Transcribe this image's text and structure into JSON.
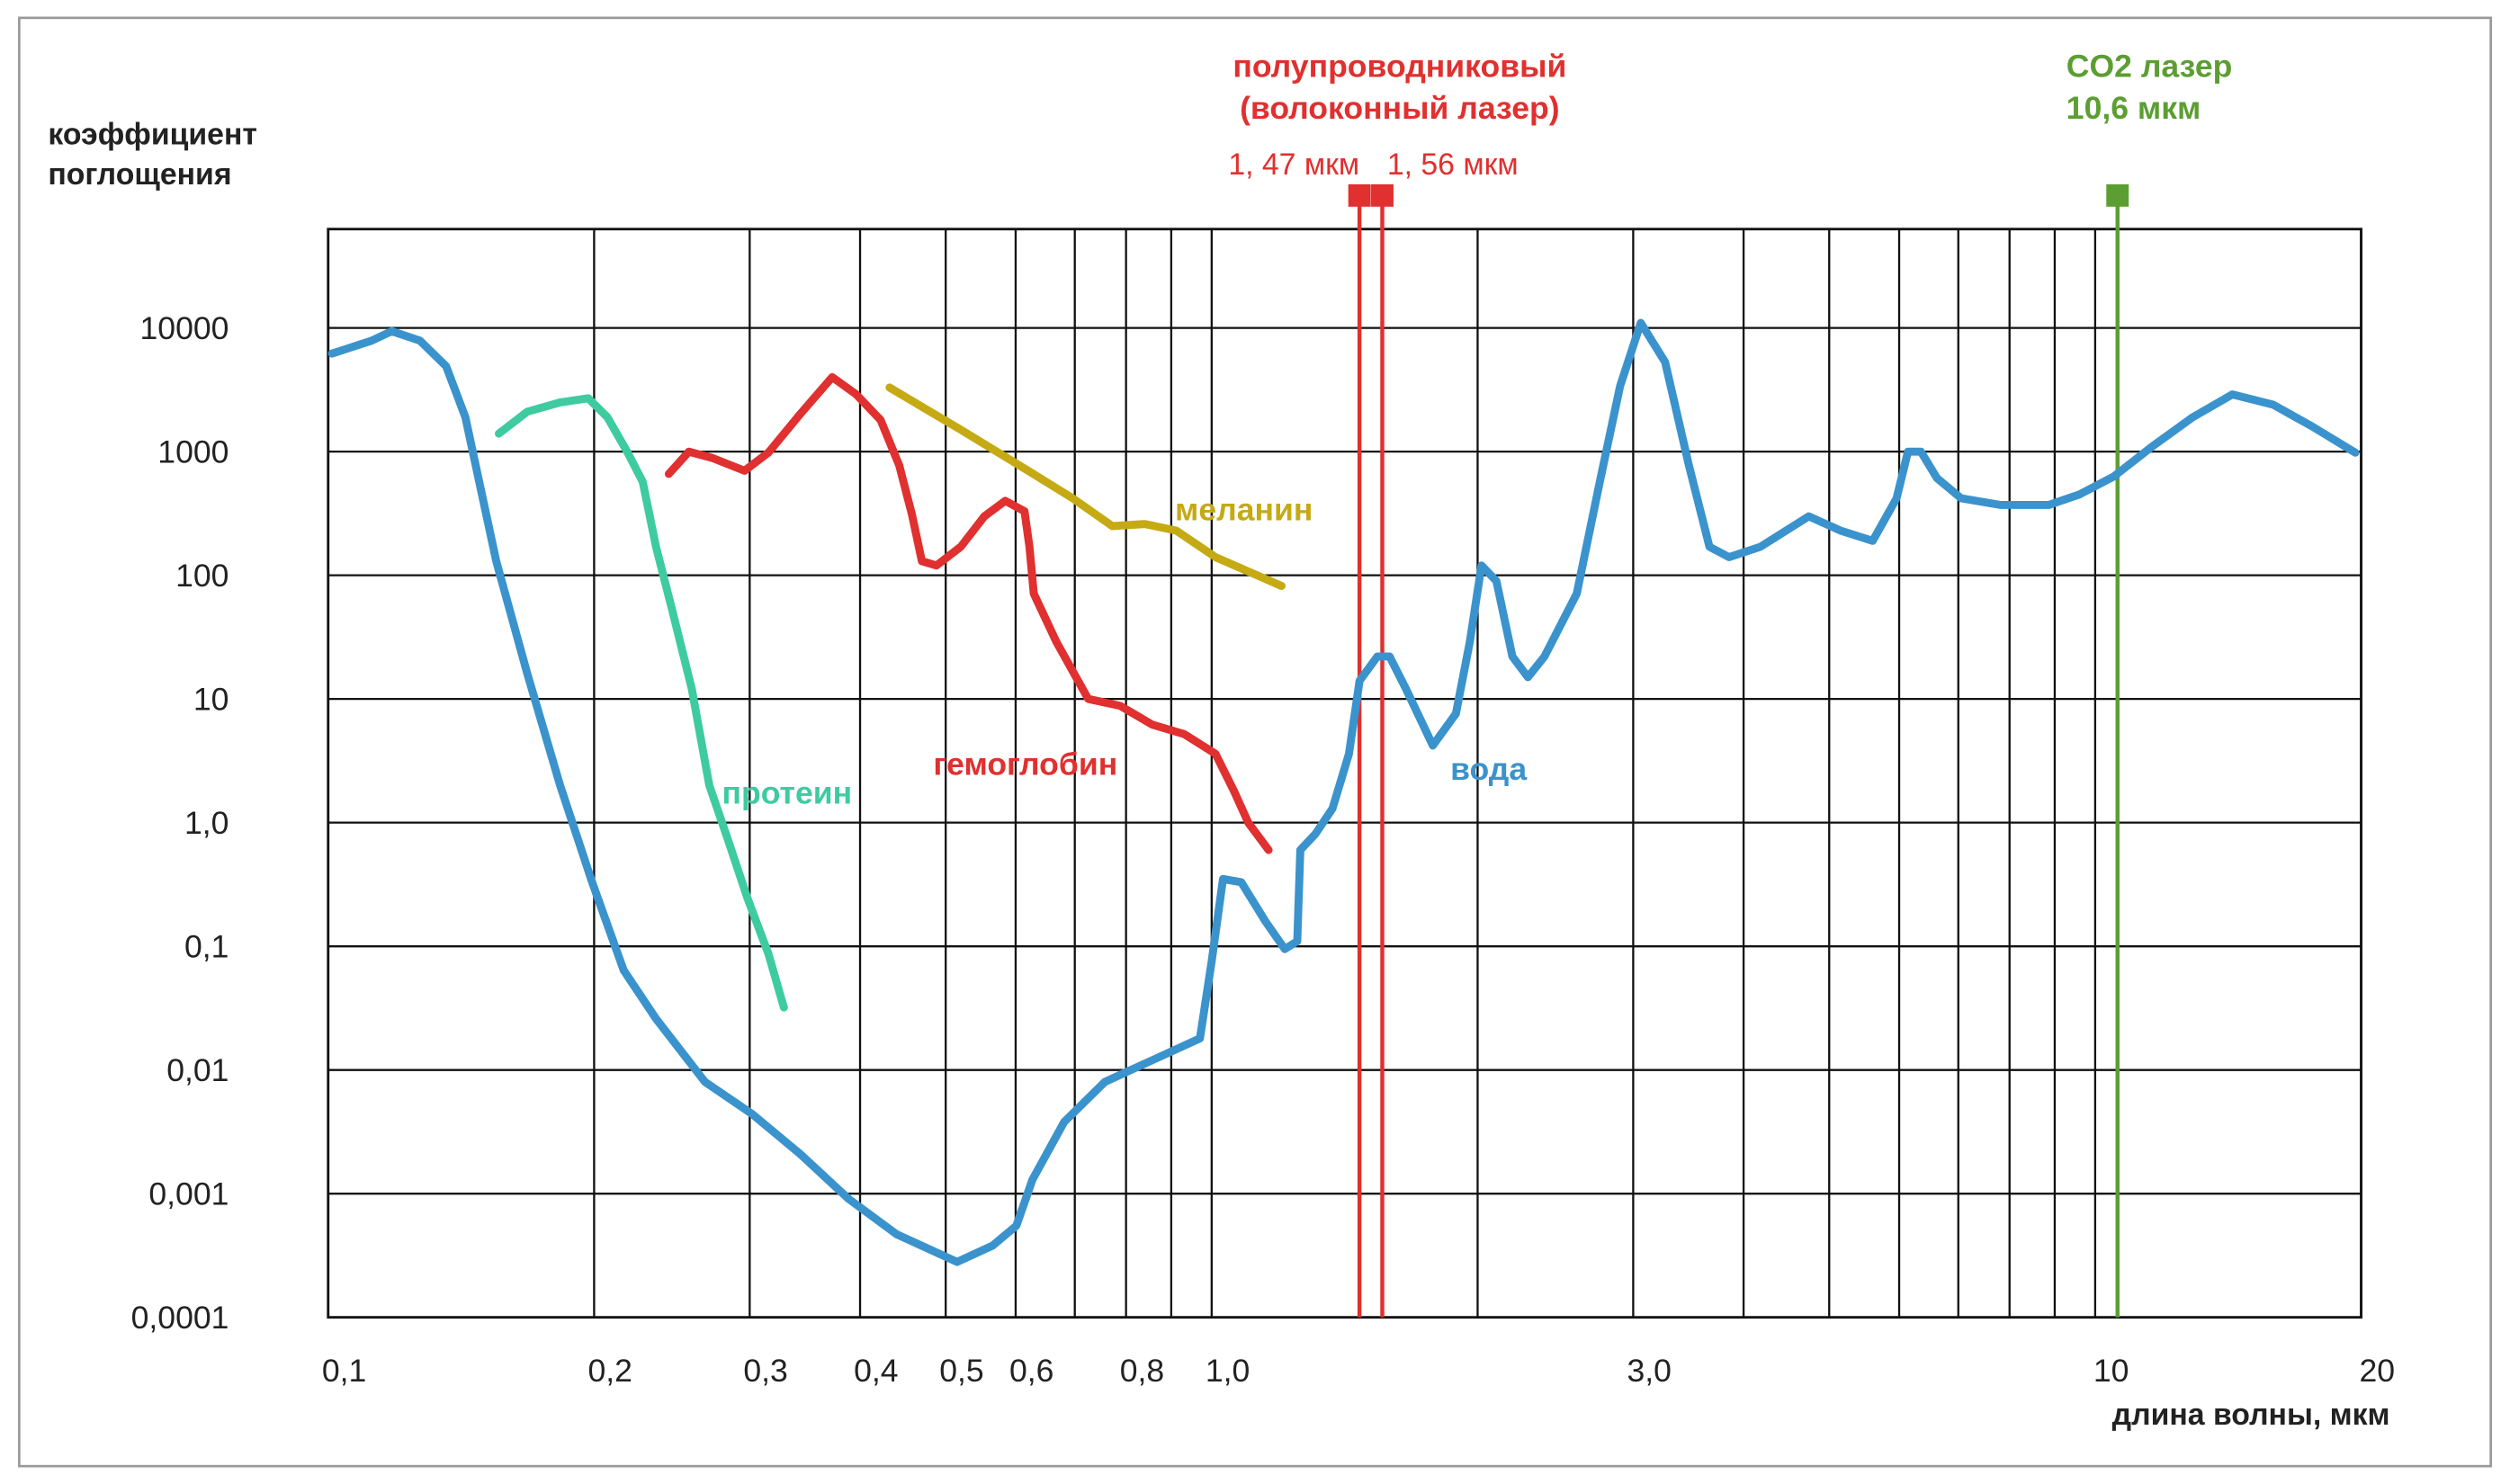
{
  "chart_data": {
    "type": "line",
    "y_label_lines": [
      "коэффициент",
      "поглощения"
    ],
    "x_label": "длина волны, мкм",
    "x_scale": "log",
    "y_scale": "log",
    "grid": true,
    "xlim": [
      0.1,
      20
    ],
    "ylim": [
      0.0001,
      63000
    ],
    "xticks": [
      {
        "value": 0.1,
        "label": "0,1"
      },
      {
        "value": 0.2,
        "label": "0,2"
      },
      {
        "value": 0.3,
        "label": "0,3"
      },
      {
        "value": 0.4,
        "label": "0,4"
      },
      {
        "value": 0.5,
        "label": "0,5"
      },
      {
        "value": 0.6,
        "label": "0,6"
      },
      {
        "value": 0.8,
        "label": "0,8"
      },
      {
        "value": 1,
        "label": "1,0"
      },
      {
        "value": 3,
        "label": "3,0"
      },
      10,
      20
    ],
    "xgrid": [
      0.7,
      0.9,
      2,
      4,
      5,
      6,
      7,
      8,
      9
    ],
    "yticks": [
      {
        "value": 0.0001,
        "label": "0,0001"
      },
      {
        "value": 0.001,
        "label": "0,001"
      },
      {
        "value": 0.01,
        "label": "0,01"
      },
      {
        "value": 0.1,
        "label": "0,1"
      },
      {
        "value": 1,
        "label": "1,0"
      },
      10,
      100,
      1000,
      10000
    ],
    "series": [
      {
        "name": "вода",
        "color": "#3a93cc",
        "x": [
          0.101,
          0.112,
          0.118,
          0.127,
          0.136,
          0.143,
          0.155,
          0.168,
          0.183,
          0.199,
          0.216,
          0.235,
          0.267,
          0.302,
          0.342,
          0.388,
          0.44,
          0.515,
          0.565,
          0.601,
          0.627,
          0.681,
          0.757,
          0.857,
          0.97,
          1.0,
          1.03,
          1.08,
          1.15,
          1.21,
          1.25,
          1.26,
          1.31,
          1.37,
          1.43,
          1.47,
          1.54,
          1.59,
          1.66,
          1.78,
          1.89,
          1.96,
          2.02,
          2.1,
          2.19,
          2.28,
          2.38,
          2.59,
          2.75,
          2.9,
          3.06,
          3.26,
          3.47,
          3.66,
          3.85,
          4.18,
          4.74,
          5.15,
          5.6,
          5.96,
          6.14,
          6.35,
          6.62,
          7.05,
          7.82,
          8.86,
          9.6,
          10.5,
          11.6,
          12.9,
          14.3,
          15.9,
          17.6,
          19.7
        ],
        "values": [
          6200,
          7900,
          9400,
          7900,
          4900,
          1900,
          130,
          16,
          2.0,
          0.33,
          0.064,
          0.026,
          0.008,
          0.0044,
          0.0021,
          0.00091,
          0.00047,
          0.00028,
          0.00038,
          0.00055,
          0.0013,
          0.0038,
          0.008,
          0.012,
          0.018,
          0.075,
          0.35,
          0.33,
          0.16,
          0.095,
          0.11,
          0.6,
          0.81,
          1.3,
          3.6,
          14,
          22,
          22,
          12,
          4.2,
          7.6,
          29,
          120,
          90,
          22,
          15,
          22,
          71,
          570,
          3400,
          11000,
          5300,
          770,
          170,
          140,
          170,
          300,
          230,
          190,
          420,
          1000,
          1000,
          610,
          420,
          370,
          370,
          450,
          630,
          1100,
          1900,
          2900,
          2400,
          1600,
          980
        ]
      },
      {
        "name": "протеин",
        "color": "#3ecba0",
        "x": [
          0.156,
          0.168,
          0.183,
          0.197,
          0.207,
          0.218,
          0.227,
          0.235,
          0.245,
          0.258,
          0.27,
          0.284,
          0.298,
          0.315,
          0.328
        ],
        "values": [
          1400,
          2100,
          2500,
          2700,
          1900,
          1000,
          570,
          170,
          53,
          12,
          2.0,
          0.7,
          0.25,
          0.087,
          0.032
        ]
      },
      {
        "name": "гемоглобин",
        "color": "#e0302f",
        "x": [
          0.243,
          0.256,
          0.272,
          0.296,
          0.315,
          0.342,
          0.372,
          0.396,
          0.422,
          0.443,
          0.458,
          0.47,
          0.488,
          0.52,
          0.553,
          0.584,
          0.614,
          0.622,
          0.629,
          0.667,
          0.725,
          0.788,
          0.857,
          0.931,
          1.01,
          1.06,
          1.1,
          1.16
        ],
        "values": [
          660,
          1000,
          890,
          700,
          980,
          2000,
          4000,
          2900,
          1800,
          770,
          310,
          130,
          120,
          170,
          300,
          400,
          330,
          170,
          71,
          29,
          10,
          8.8,
          6.2,
          5.2,
          3.6,
          1.8,
          1.0,
          0.6
        ]
      },
      {
        "name": "меланин",
        "color": "#c5aa14",
        "x": [
          0.432,
          0.52,
          0.614,
          0.696,
          0.772,
          0.84,
          0.912,
          1.01,
          1.2
        ],
        "values": [
          3300,
          1500,
          730,
          420,
          250,
          260,
          230,
          140,
          82
        ]
      }
    ],
    "markers": [
      {
        "x": 1.47,
        "label": "1, 47 мкм",
        "color": "#e0302f"
      },
      {
        "x": 1.56,
        "label": "1, 56 мкм",
        "color": "#e0302f"
      },
      {
        "x": 10.6,
        "color": "#5c9e32"
      }
    ],
    "marker_groups": [
      {
        "lines": [
          "полупроводниковый",
          "(волоконный лазер)"
        ],
        "color": "#e0302f"
      },
      {
        "lines": [
          "CO2 лазер",
          "10,6 мкм"
        ],
        "color": "#5c9e32"
      }
    ]
  }
}
